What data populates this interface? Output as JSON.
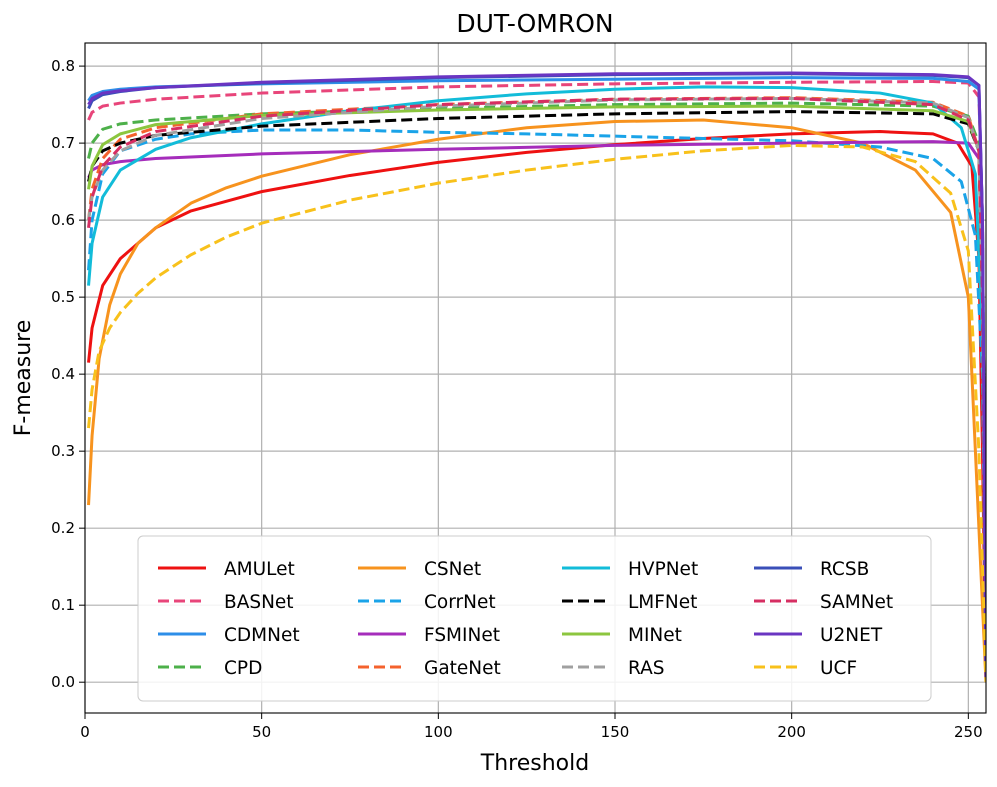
{
  "chart_data": {
    "type": "line",
    "title": "DUT-OMRON",
    "xlabel": "Threshold",
    "ylabel": "F-measure",
    "xlim": [
      0,
      255
    ],
    "ylim": [
      -0.04,
      0.83
    ],
    "xticks": [
      0,
      50,
      100,
      150,
      200,
      250
    ],
    "yticks": [
      0.0,
      0.1,
      0.2,
      0.3,
      0.4,
      0.5,
      0.6,
      0.7,
      0.8
    ],
    "ytick_labels": [
      "0.0",
      "0.1",
      "0.2",
      "0.3",
      "0.4",
      "0.5",
      "0.6",
      "0.7",
      "0.8"
    ],
    "grid": true,
    "legend_position": "lower-center",
    "legend_columns": 4,
    "series": [
      {
        "name": "AMULet",
        "color": "#ee1111",
        "dash": "solid",
        "x": [
          1,
          2,
          5,
          10,
          20,
          30,
          50,
          75,
          100,
          125,
          150,
          175,
          200,
          225,
          240,
          247,
          251,
          253,
          254,
          255
        ],
        "y": [
          0.415,
          0.46,
          0.515,
          0.55,
          0.59,
          0.612,
          0.637,
          0.658,
          0.675,
          0.688,
          0.698,
          0.706,
          0.712,
          0.715,
          0.712,
          0.7,
          0.67,
          0.55,
          0.3,
          0.0
        ]
      },
      {
        "name": "BASNet",
        "color": "#e8457a",
        "dash": "dashed",
        "x": [
          1,
          2,
          5,
          10,
          20,
          50,
          100,
          150,
          200,
          240,
          250,
          253,
          254,
          255
        ],
        "y": [
          0.73,
          0.74,
          0.748,
          0.752,
          0.757,
          0.765,
          0.773,
          0.777,
          0.779,
          0.78,
          0.778,
          0.76,
          0.6,
          0.02
        ]
      },
      {
        "name": "CDMNet",
        "color": "#2d8ee8",
        "dash": "solid",
        "x": [
          1,
          2,
          5,
          10,
          20,
          50,
          100,
          150,
          200,
          240,
          250,
          253,
          254,
          255
        ],
        "y": [
          0.755,
          0.762,
          0.767,
          0.77,
          0.773,
          0.777,
          0.781,
          0.783,
          0.785,
          0.784,
          0.78,
          0.77,
          0.6,
          0.0
        ]
      },
      {
        "name": "CPD",
        "color": "#4db04a",
        "dash": "dashed",
        "x": [
          1,
          2,
          5,
          10,
          20,
          50,
          100,
          150,
          200,
          240,
          250,
          253,
          254,
          255
        ],
        "y": [
          0.68,
          0.7,
          0.718,
          0.725,
          0.73,
          0.738,
          0.745,
          0.75,
          0.752,
          0.748,
          0.735,
          0.7,
          0.5,
          0.01
        ]
      },
      {
        "name": "CSNet",
        "color": "#f7931e",
        "dash": "solid",
        "x": [
          1,
          2,
          4,
          7,
          10,
          15,
          20,
          30,
          40,
          50,
          75,
          100,
          125,
          150,
          175,
          200,
          220,
          235,
          245,
          250,
          253,
          255
        ],
        "y": [
          0.23,
          0.32,
          0.42,
          0.49,
          0.53,
          0.57,
          0.59,
          0.622,
          0.642,
          0.657,
          0.685,
          0.705,
          0.72,
          0.728,
          0.73,
          0.72,
          0.7,
          0.665,
          0.61,
          0.5,
          0.2,
          0.0
        ]
      },
      {
        "name": "CorrNet",
        "color": "#1aa3e8",
        "dash": "dashed",
        "x": [
          1,
          2,
          5,
          10,
          20,
          30,
          50,
          75,
          100,
          125,
          150,
          175,
          200,
          225,
          240,
          248,
          252,
          254,
          255
        ],
        "y": [
          0.535,
          0.6,
          0.66,
          0.69,
          0.705,
          0.712,
          0.717,
          0.717,
          0.714,
          0.712,
          0.709,
          0.706,
          0.703,
          0.695,
          0.68,
          0.65,
          0.58,
          0.4,
          0.03
        ]
      },
      {
        "name": "FSMINet",
        "color": "#a52dbb",
        "dash": "solid",
        "x": [
          1,
          2,
          5,
          10,
          20,
          50,
          100,
          150,
          200,
          240,
          250,
          253,
          254,
          255
        ],
        "y": [
          0.655,
          0.665,
          0.672,
          0.676,
          0.68,
          0.686,
          0.692,
          0.697,
          0.7,
          0.702,
          0.7,
          0.68,
          0.5,
          0.01
        ]
      },
      {
        "name": "GateNet",
        "color": "#f4622d",
        "dash": "dashed",
        "x": [
          1,
          2,
          5,
          10,
          20,
          50,
          100,
          150,
          200,
          240,
          250,
          253,
          254,
          255
        ],
        "y": [
          0.6,
          0.64,
          0.68,
          0.705,
          0.72,
          0.738,
          0.75,
          0.757,
          0.759,
          0.753,
          0.735,
          0.69,
          0.5,
          0.01
        ]
      },
      {
        "name": "HVPNet",
        "color": "#12bcd9",
        "dash": "solid",
        "x": [
          1,
          2,
          5,
          10,
          20,
          30,
          50,
          75,
          100,
          125,
          150,
          175,
          200,
          225,
          240,
          248,
          252,
          254,
          255
        ],
        "y": [
          0.515,
          0.57,
          0.63,
          0.665,
          0.692,
          0.707,
          0.725,
          0.742,
          0.755,
          0.764,
          0.77,
          0.773,
          0.772,
          0.765,
          0.752,
          0.72,
          0.66,
          0.45,
          0.02
        ]
      },
      {
        "name": "LMFNet",
        "color": "#000000",
        "dash": "dashed",
        "x": [
          1,
          2,
          5,
          10,
          20,
          50,
          100,
          150,
          200,
          240,
          250,
          253,
          254,
          255
        ],
        "y": [
          0.65,
          0.67,
          0.69,
          0.7,
          0.71,
          0.722,
          0.732,
          0.738,
          0.741,
          0.738,
          0.725,
          0.69,
          0.5,
          0.01
        ]
      },
      {
        "name": "MINet",
        "color": "#8cc63f",
        "dash": "solid",
        "x": [
          1,
          2,
          5,
          10,
          20,
          50,
          100,
          150,
          200,
          240,
          250,
          253,
          254,
          255
        ],
        "y": [
          0.64,
          0.67,
          0.698,
          0.712,
          0.724,
          0.736,
          0.743,
          0.747,
          0.748,
          0.742,
          0.728,
          0.69,
          0.5,
          0.01
        ]
      },
      {
        "name": "RAS",
        "color": "#a0a0a0",
        "dash": "dashed",
        "x": [
          1,
          2,
          5,
          10,
          20,
          50,
          100,
          150,
          200,
          240,
          250,
          253,
          254,
          255
        ],
        "y": [
          0.6,
          0.63,
          0.665,
          0.69,
          0.71,
          0.732,
          0.748,
          0.756,
          0.758,
          0.752,
          0.733,
          0.69,
          0.5,
          0.01
        ]
      },
      {
        "name": "RCSB",
        "color": "#3a4fb8",
        "dash": "solid",
        "x": [
          1,
          2,
          5,
          10,
          20,
          50,
          100,
          150,
          200,
          240,
          250,
          253,
          254,
          255
        ],
        "y": [
          0.745,
          0.755,
          0.763,
          0.767,
          0.772,
          0.778,
          0.785,
          0.789,
          0.79,
          0.788,
          0.785,
          0.775,
          0.6,
          0.0
        ]
      },
      {
        "name": "SAMNet",
        "color": "#d62e62",
        "dash": "dashed",
        "x": [
          1,
          2,
          5,
          10,
          20,
          50,
          100,
          150,
          200,
          240,
          250,
          253,
          254,
          255
        ],
        "y": [
          0.59,
          0.63,
          0.67,
          0.695,
          0.715,
          0.735,
          0.75,
          0.757,
          0.758,
          0.75,
          0.73,
          0.69,
          0.5,
          0.01
        ]
      },
      {
        "name": "U2NET",
        "color": "#6a35c2",
        "dash": "solid",
        "x": [
          1,
          2,
          5,
          10,
          20,
          50,
          100,
          150,
          200,
          240,
          250,
          253,
          254,
          255
        ],
        "y": [
          0.75,
          0.758,
          0.765,
          0.768,
          0.772,
          0.779,
          0.786,
          0.79,
          0.791,
          0.789,
          0.786,
          0.775,
          0.6,
          0.0
        ]
      },
      {
        "name": "UCF",
        "color": "#f8c11b",
        "dash": "dashed",
        "x": [
          1,
          2,
          4,
          7,
          10,
          15,
          20,
          30,
          40,
          50,
          75,
          100,
          125,
          150,
          175,
          200,
          220,
          235,
          245,
          250,
          253,
          255
        ],
        "y": [
          0.33,
          0.38,
          0.43,
          0.46,
          0.48,
          0.505,
          0.525,
          0.555,
          0.578,
          0.596,
          0.626,
          0.648,
          0.665,
          0.679,
          0.69,
          0.697,
          0.695,
          0.676,
          0.635,
          0.56,
          0.3,
          0.0
        ]
      }
    ]
  }
}
